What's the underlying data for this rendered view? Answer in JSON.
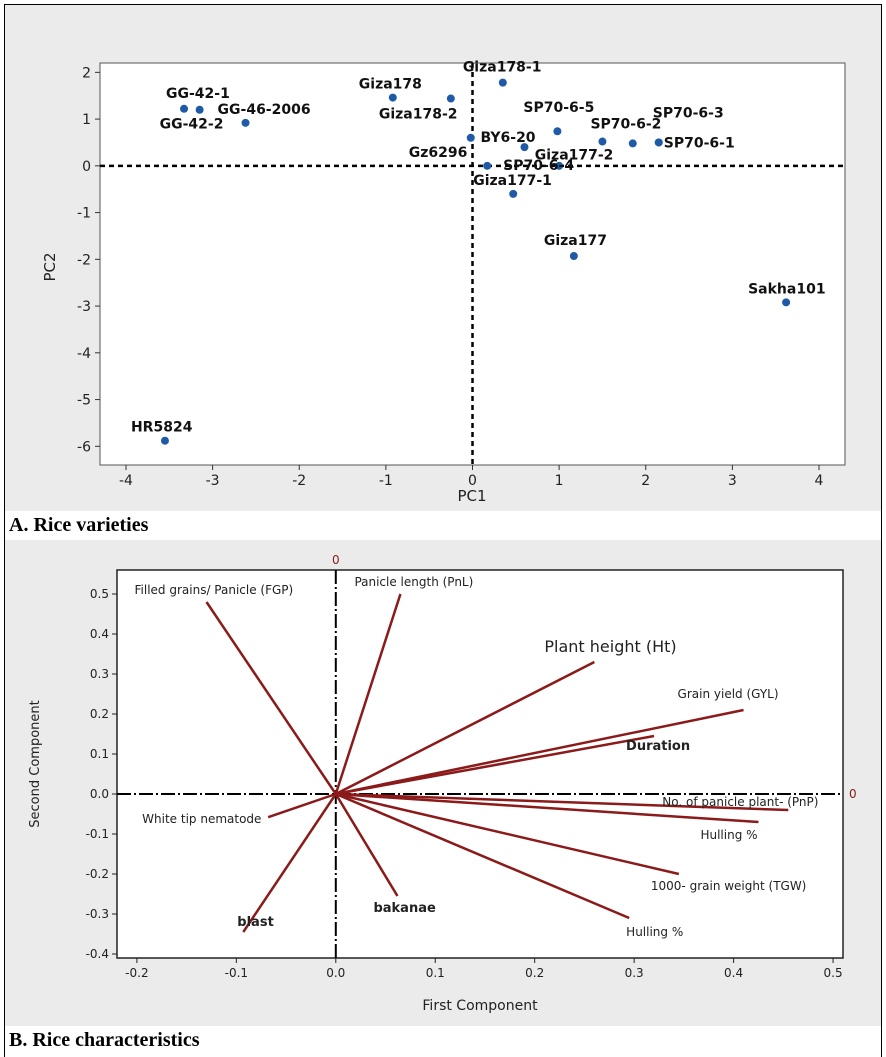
{
  "captions": {
    "a": "A. Rice varieties",
    "b": "B. Rice characteristics"
  },
  "colors": {
    "point": "#1f5aa6",
    "vector": "#8b1a1a",
    "panel_bg": "#ebebeb",
    "plot_bg": "#ffffff"
  },
  "chart_data": [
    {
      "type": "scatter",
      "title": "",
      "xlabel": "PC1",
      "ylabel": "PC2",
      "xlim": [
        -4.3,
        4.3
      ],
      "ylim": [
        -6.4,
        2.2
      ],
      "xticks": [
        -4,
        -3,
        -2,
        -1,
        0,
        1,
        2,
        3,
        4
      ],
      "yticks": [
        2,
        1,
        0,
        -1,
        -2,
        -3,
        -4,
        -5,
        -6
      ],
      "reference_lines": {
        "x": 0,
        "y": 0,
        "style": "dashed"
      },
      "grid": false,
      "points": [
        {
          "label": "GG-42-1",
          "x": -3.33,
          "y": 1.22
        },
        {
          "label": "GG-42-2",
          "x": -3.15,
          "y": 1.2
        },
        {
          "label": "GG-46-2006",
          "x": -2.62,
          "y": 0.92
        },
        {
          "label": "Giza178",
          "x": -0.92,
          "y": 1.46
        },
        {
          "label": "Giza178-2",
          "x": -0.25,
          "y": 1.44
        },
        {
          "label": "Giza178-1",
          "x": 0.35,
          "y": 1.78
        },
        {
          "label": "Gz6296",
          "x": -0.02,
          "y": 0.6
        },
        {
          "label": "BY6-20",
          "x": 0.6,
          "y": 0.4
        },
        {
          "label": "SP70-6-5",
          "x": 0.98,
          "y": 0.74
        },
        {
          "label": "SP70-6-4",
          "x": 1.0,
          "y": 0.0
        },
        {
          "label": "SP70-6-2",
          "x": 1.5,
          "y": 0.52
        },
        {
          "label": "Giza177-2",
          "x": 1.85,
          "y": 0.48
        },
        {
          "label": "SP70-6-3",
          "x": 2.15,
          "y": 0.5
        },
        {
          "label": "SP70-6-1",
          "x": 2.15,
          "y": 0.5
        },
        {
          "label": "Giza177-1",
          "x": 0.17,
          "y": 0.0
        },
        {
          "label": "",
          "x": 0.47,
          "y": -0.6
        },
        {
          "label": "Giza177",
          "x": 1.17,
          "y": -1.93
        },
        {
          "label": "Sakha101",
          "x": 3.62,
          "y": -2.92
        },
        {
          "label": "HR5824",
          "x": -3.55,
          "y": -5.88
        }
      ]
    },
    {
      "type": "biplot",
      "title": "",
      "xlabel": "First Component",
      "ylabel": "Second Component",
      "xlim": [
        -0.22,
        0.51
      ],
      "ylim": [
        -0.41,
        0.56
      ],
      "xticks": [
        -0.2,
        -0.1,
        0.0,
        0.1,
        0.2,
        0.3,
        0.4,
        0.5
      ],
      "xtick_labels": [
        "-0.2",
        "-0.1",
        "0.0",
        "0.1",
        "0.2",
        "0.3",
        "0.4",
        "0.5"
      ],
      "yticks": [
        0.5,
        0.4,
        0.3,
        0.2,
        0.1,
        0.0,
        -0.1,
        -0.2,
        -0.3,
        -0.4
      ],
      "ytick_labels": [
        "0.5",
        "0.4",
        "0.3",
        "0.2",
        "0.1",
        "0.0",
        "-0.1",
        "-0.2",
        "-0.3",
        "-0.4"
      ],
      "origin_labels": [
        "0",
        "0"
      ],
      "vectors": [
        {
          "label": "Filled grains/ Panicle (FGP)",
          "x": -0.13,
          "y": 0.48
        },
        {
          "label": "Panicle length (PnL)",
          "x": 0.065,
          "y": 0.5
        },
        {
          "label": "Plant height (Ht)",
          "x": 0.26,
          "y": 0.33
        },
        {
          "label": "Grain yield (GYL)",
          "x": 0.41,
          "y": 0.21
        },
        {
          "label": "Duration",
          "x": 0.32,
          "y": 0.145
        },
        {
          "label": "No. of panicle plant- (PnP)",
          "x": 0.455,
          "y": -0.04
        },
        {
          "label": "Hulling %",
          "x": 0.425,
          "y": -0.07
        },
        {
          "label": "1000- grain weight (TGW)",
          "x": 0.345,
          "y": -0.2
        },
        {
          "label": "Hulling %",
          "x": 0.295,
          "y": -0.31
        },
        {
          "label": "bakanae",
          "x": 0.062,
          "y": -0.255
        },
        {
          "label": "blast",
          "x": -0.093,
          "y": -0.345
        },
        {
          "label": "White tip nematode",
          "x": -0.068,
          "y": -0.058
        }
      ]
    }
  ]
}
